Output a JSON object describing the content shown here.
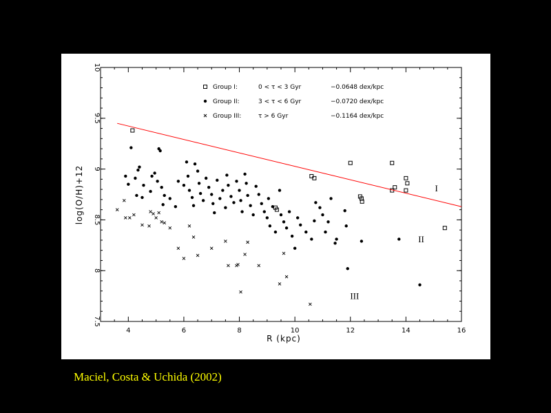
{
  "caption": "Maciel, Costa & Uchida (2002)",
  "colors": {
    "background": "#000000",
    "panel": "#ffffff",
    "caption": "#ffff00",
    "fit_line": "#ff0000",
    "points": "#000000"
  },
  "chart_data": {
    "type": "scatter",
    "title": "",
    "xlabel": "R (kpc)",
    "ylabel": "log(O/H)+12",
    "xlim": [
      3,
      16
    ],
    "ylim": [
      7.5,
      10
    ],
    "xticks": [
      4,
      6,
      8,
      10,
      12,
      14,
      16
    ],
    "yticks": [
      7.5,
      8,
      8.5,
      9,
      9.5,
      10
    ],
    "xtick_labels": [
      "4",
      "6",
      "8",
      "10",
      "12",
      "14",
      "16"
    ],
    "ytick_labels": [
      "7.5",
      "8",
      "8.5",
      "9",
      "9.5",
      "10"
    ],
    "grid": false,
    "legend_position": "top",
    "legend": [
      {
        "group": "Group I:",
        "age": "0 < τ < 3 Gyr",
        "gradient": "−0.0648 dex/kpc",
        "marker": "open-square"
      },
      {
        "group": "Group II:",
        "age": "3 < τ < 6 Gyr",
        "gradient": "−0.0720 dex/kpc",
        "marker": "filled-circle"
      },
      {
        "group": "Group III:",
        "age": "τ > 6 Gyr",
        "gradient": "−0.1164 dex/kpc",
        "marker": "cross"
      }
    ],
    "annotations": [
      {
        "text": "I",
        "x": 15.1,
        "y": 8.78
      },
      {
        "text": "II",
        "x": 14.55,
        "y": 8.28
      },
      {
        "text": "III",
        "x": 12.15,
        "y": 7.72
      }
    ],
    "fit_line": {
      "x": [
        3.6,
        16
      ],
      "y": [
        9.45,
        8.63
      ]
    },
    "series": [
      {
        "name": "Group I",
        "marker": "open-square",
        "points": [
          [
            4.15,
            9.38
          ],
          [
            9.3,
            8.62
          ],
          [
            9.35,
            8.6
          ],
          [
            10.6,
            8.93
          ],
          [
            10.7,
            8.91
          ],
          [
            12.0,
            9.06
          ],
          [
            12.35,
            8.73
          ],
          [
            12.4,
            8.71
          ],
          [
            12.42,
            8.68
          ],
          [
            13.5,
            9.06
          ],
          [
            13.6,
            8.82
          ],
          [
            13.5,
            8.79
          ],
          [
            14.0,
            8.91
          ],
          [
            14.0,
            8.79
          ],
          [
            14.05,
            8.86
          ],
          [
            15.4,
            8.42
          ]
        ]
      },
      {
        "name": "Group II",
        "marker": "filled-circle",
        "points": [
          [
            4.1,
            9.21
          ],
          [
            5.1,
            9.2
          ],
          [
            5.15,
            9.18
          ],
          [
            4.4,
            9.02
          ],
          [
            4.35,
            8.99
          ],
          [
            3.9,
            8.93
          ],
          [
            4.0,
            8.85
          ],
          [
            4.25,
            8.91
          ],
          [
            4.3,
            8.74
          ],
          [
            4.5,
            8.72
          ],
          [
            4.55,
            8.84
          ],
          [
            4.8,
            8.78
          ],
          [
            4.85,
            8.93
          ],
          [
            4.95,
            8.96
          ],
          [
            5.05,
            8.88
          ],
          [
            5.2,
            8.82
          ],
          [
            5.3,
            8.74
          ],
          [
            5.25,
            8.65
          ],
          [
            5.5,
            8.71
          ],
          [
            5.7,
            8.63
          ],
          [
            5.8,
            8.88
          ],
          [
            6.0,
            8.84
          ],
          [
            6.1,
            9.07
          ],
          [
            6.15,
            8.93
          ],
          [
            6.2,
            8.79
          ],
          [
            6.3,
            8.72
          ],
          [
            6.35,
            8.64
          ],
          [
            6.4,
            9.05
          ],
          [
            6.5,
            8.98
          ],
          [
            6.55,
            8.86
          ],
          [
            6.6,
            8.76
          ],
          [
            6.7,
            8.69
          ],
          [
            6.8,
            8.91
          ],
          [
            6.9,
            8.82
          ],
          [
            7.0,
            8.75
          ],
          [
            7.05,
            8.66
          ],
          [
            7.1,
            8.57
          ],
          [
            7.2,
            8.89
          ],
          [
            7.3,
            8.71
          ],
          [
            7.4,
            8.79
          ],
          [
            7.5,
            8.62
          ],
          [
            7.55,
            8.94
          ],
          [
            7.6,
            8.84
          ],
          [
            7.7,
            8.73
          ],
          [
            7.8,
            8.67
          ],
          [
            7.9,
            8.88
          ],
          [
            8.0,
            8.79
          ],
          [
            8.05,
            8.69
          ],
          [
            8.1,
            8.58
          ],
          [
            8.2,
            8.95
          ],
          [
            8.25,
            8.86
          ],
          [
            8.3,
            8.74
          ],
          [
            8.4,
            8.64
          ],
          [
            8.5,
            8.55
          ],
          [
            8.6,
            8.83
          ],
          [
            8.7,
            8.75
          ],
          [
            8.8,
            8.66
          ],
          [
            8.9,
            8.58
          ],
          [
            9.0,
            8.52
          ],
          [
            9.05,
            8.71
          ],
          [
            9.1,
            8.44
          ],
          [
            9.2,
            8.63
          ],
          [
            9.3,
            8.38
          ],
          [
            9.45,
            8.79
          ],
          [
            9.5,
            8.55
          ],
          [
            9.6,
            8.48
          ],
          [
            9.7,
            8.42
          ],
          [
            9.8,
            8.58
          ],
          [
            9.9,
            8.34
          ],
          [
            10.0,
            8.22
          ],
          [
            10.1,
            8.52
          ],
          [
            10.2,
            8.45
          ],
          [
            10.4,
            8.38
          ],
          [
            10.6,
            8.31
          ],
          [
            10.7,
            8.49
          ],
          [
            10.75,
            8.67
          ],
          [
            10.9,
            8.62
          ],
          [
            11.0,
            8.55
          ],
          [
            11.1,
            8.38
          ],
          [
            11.2,
            8.48
          ],
          [
            11.3,
            8.71
          ],
          [
            11.45,
            8.27
          ],
          [
            11.5,
            8.31
          ],
          [
            11.8,
            8.59
          ],
          [
            11.85,
            8.44
          ],
          [
            11.9,
            8.02
          ],
          [
            12.4,
            8.29
          ],
          [
            13.75,
            8.31
          ],
          [
            14.5,
            7.86
          ]
        ]
      },
      {
        "name": "Group III",
        "marker": "cross",
        "points": [
          [
            3.6,
            8.6
          ],
          [
            3.9,
            8.52
          ],
          [
            3.85,
            8.69
          ],
          [
            4.05,
            8.52
          ],
          [
            4.2,
            8.55
          ],
          [
            4.5,
            8.45
          ],
          [
            4.75,
            8.44
          ],
          [
            4.8,
            8.58
          ],
          [
            4.9,
            8.56
          ],
          [
            5.0,
            8.52
          ],
          [
            5.1,
            8.57
          ],
          [
            5.2,
            8.48
          ],
          [
            5.3,
            8.47
          ],
          [
            5.5,
            8.42
          ],
          [
            5.8,
            8.22
          ],
          [
            6.0,
            8.12
          ],
          [
            6.2,
            8.44
          ],
          [
            6.35,
            8.33
          ],
          [
            6.5,
            8.15
          ],
          [
            7.0,
            8.22
          ],
          [
            7.5,
            8.29
          ],
          [
            7.6,
            8.05
          ],
          [
            7.9,
            8.05
          ],
          [
            7.95,
            8.06
          ],
          [
            8.05,
            7.79
          ],
          [
            8.2,
            8.16
          ],
          [
            8.3,
            8.28
          ],
          [
            8.7,
            8.05
          ],
          [
            9.45,
            7.87
          ],
          [
            9.6,
            8.17
          ],
          [
            9.7,
            7.94
          ],
          [
            10.55,
            7.67
          ]
        ]
      }
    ]
  }
}
